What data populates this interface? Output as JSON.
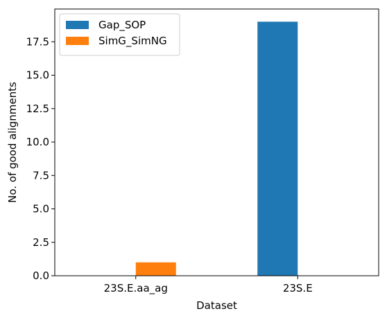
{
  "chart_data": {
    "type": "bar",
    "categories": [
      "23S.E.aa_ag",
      "23S.E"
    ],
    "series": [
      {
        "name": "Gap_SOP",
        "values": [
          0,
          19
        ],
        "color": "#1f77b4"
      },
      {
        "name": "SimG_SimNG",
        "values": [
          1,
          0
        ],
        "color": "#ff7f0e"
      }
    ],
    "xlabel": "Dataset",
    "ylabel": "No. of good alignments",
    "ylim": [
      0,
      19.95
    ],
    "yticks": [
      0.0,
      2.5,
      5.0,
      7.5,
      10.0,
      12.5,
      15.0,
      17.5
    ],
    "ytick_labels": [
      "0.0",
      "2.5",
      "5.0",
      "7.5",
      "10.0",
      "12.5",
      "15.0",
      "17.5"
    ],
    "grid": false,
    "legend_position": "top-left"
  }
}
